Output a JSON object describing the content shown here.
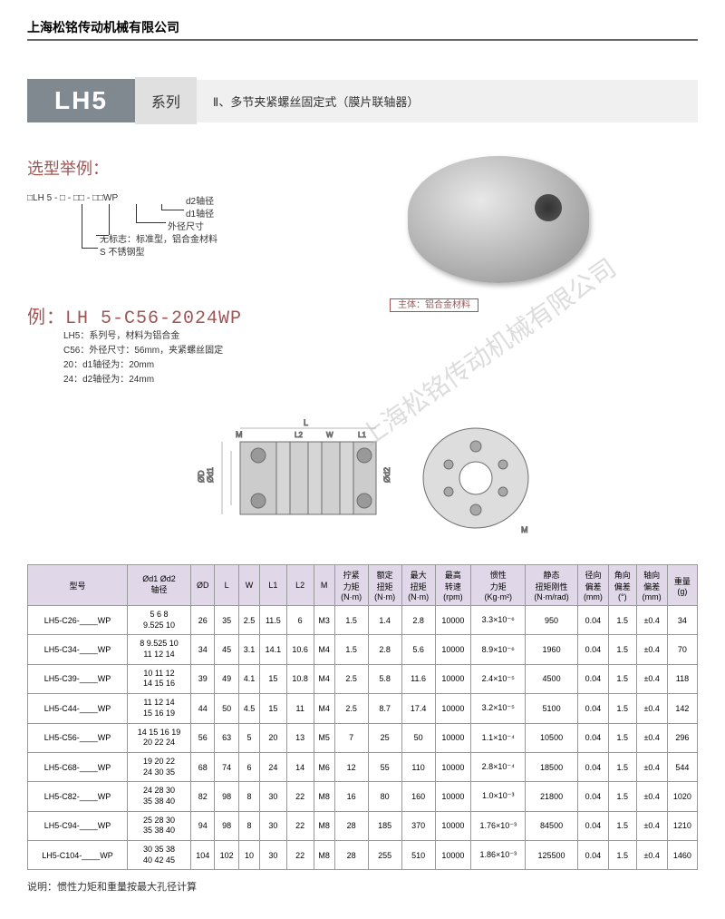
{
  "company": "上海松铭传动机械有限公司",
  "series": {
    "code": "LH5",
    "label": "系列",
    "description": "Ⅱ、多节夹紧螺丝固定式（膜片联轴器）"
  },
  "selection_title": "选型举例：",
  "diagram": {
    "parts": [
      "LH 5",
      "-",
      "-",
      "-",
      "WP"
    ],
    "labels": {
      "d2": "d2轴径",
      "d1": "d1轴径",
      "outer": "外径尺寸",
      "std": "无标志：标准型，铝合金材料",
      "s": "S 不锈钢型"
    }
  },
  "material_body": "主体：铝合金材料",
  "example": {
    "prefix": "例：",
    "code": "LH 5-C56-2024WP",
    "notes": [
      "LH5：系列号，材料为铝合金",
      "C56：外径尺寸：56mm，夹紧螺丝固定",
      "20：d1轴径为：20mm",
      "24：d2轴径为：24mm"
    ]
  },
  "drawing_labels": {
    "M": "M",
    "L": "L",
    "L2": "L2",
    "W": "W",
    "L1": "L1",
    "od1": "Ød1",
    "oD": "ØD",
    "od2": "Ød2"
  },
  "watermark": "上海松铭传动机械有限公司",
  "table": {
    "headers": [
      "型号",
      "Ød1 Ød2\n轴径",
      "ØD",
      "L",
      "W",
      "L1",
      "L2",
      "M",
      "拧紧\n力矩\n(N·m)",
      "额定\n扭矩\n(N·m)",
      "最大\n扭矩\n(N·m)",
      "最高\n转速\n(rpm)",
      "惯性\n力矩\n(Kg·m²)",
      "静态\n扭矩刚性\n(N·m/rad)",
      "径向\n偏差\n(mm)",
      "角向\n偏差\n(°)",
      "轴向\n偏差\n(mm)",
      "重量\n(g)"
    ],
    "rows": [
      {
        "model": "LH5-C26-____WP",
        "shaft": "5 6 8\n9.525 10",
        "d": [
          26,
          35,
          2.5,
          11.5,
          6,
          "M3",
          1.5,
          1.4,
          2.8,
          10000,
          "3.3×10⁻⁶",
          950,
          0.04,
          1.5,
          "±0.4",
          34
        ]
      },
      {
        "model": "LH5-C34-____WP",
        "shaft": "8 9.525 10\n11 12 14",
        "d": [
          34,
          45,
          3.1,
          14.1,
          10.6,
          "M4",
          1.5,
          2.8,
          5.6,
          10000,
          "8.9×10⁻⁶",
          1960,
          0.04,
          1.5,
          "±0.4",
          70
        ]
      },
      {
        "model": "LH5-C39-____WP",
        "shaft": "10 11 12\n14 15 16",
        "d": [
          39,
          49,
          4.1,
          15,
          10.8,
          "M4",
          2.5,
          5.8,
          11.6,
          10000,
          "2.4×10⁻⁵",
          4500,
          0.04,
          1.5,
          "±0.4",
          118
        ]
      },
      {
        "model": "LH5-C44-____WP",
        "shaft": "11 12 14\n15 16 19",
        "d": [
          44,
          50,
          4.5,
          15,
          11,
          "M4",
          2.5,
          8.7,
          17.4,
          10000,
          "3.2×10⁻⁵",
          5100,
          0.04,
          1.5,
          "±0.4",
          142
        ]
      },
      {
        "model": "LH5-C56-____WP",
        "shaft": "14 15 16 19\n20 22 24",
        "d": [
          56,
          63,
          5,
          20,
          13,
          "M5",
          7,
          25,
          50,
          10000,
          "1.1×10⁻⁴",
          10500,
          0.04,
          1.5,
          "±0.4",
          296
        ]
      },
      {
        "model": "LH5-C68-____WP",
        "shaft": "19 20 22\n24 30 35",
        "d": [
          68,
          74,
          6,
          24,
          14,
          "M6",
          12,
          55,
          110,
          10000,
          "2.8×10⁻⁴",
          18500,
          0.04,
          1.5,
          "±0.4",
          544
        ]
      },
      {
        "model": "LH5-C82-____WP",
        "shaft": "24 28 30\n35 38 40",
        "d": [
          82,
          98,
          8,
          30,
          22,
          "M8",
          16,
          80,
          160,
          10000,
          "1.0×10⁻³",
          21800,
          0.04,
          1.5,
          "±0.4",
          1020
        ]
      },
      {
        "model": "LH5-C94-____WP",
        "shaft": "25 28 30\n35 38 40",
        "d": [
          94,
          98,
          8,
          30,
          22,
          "M8",
          28,
          185,
          370,
          10000,
          "1.76×10⁻³",
          84500,
          0.04,
          1.5,
          "±0.4",
          1210
        ]
      },
      {
        "model": "LH5-C104-____WP",
        "shaft": "30 35 38\n40 42 45",
        "d": [
          104,
          102,
          10,
          30,
          22,
          "M8",
          28,
          255,
          510,
          10000,
          "1.86×10⁻³",
          125500,
          0.04,
          1.5,
          "±0.4",
          1460
        ]
      }
    ]
  },
  "note": "说明：惯性力矩和重量按最大孔径计算"
}
